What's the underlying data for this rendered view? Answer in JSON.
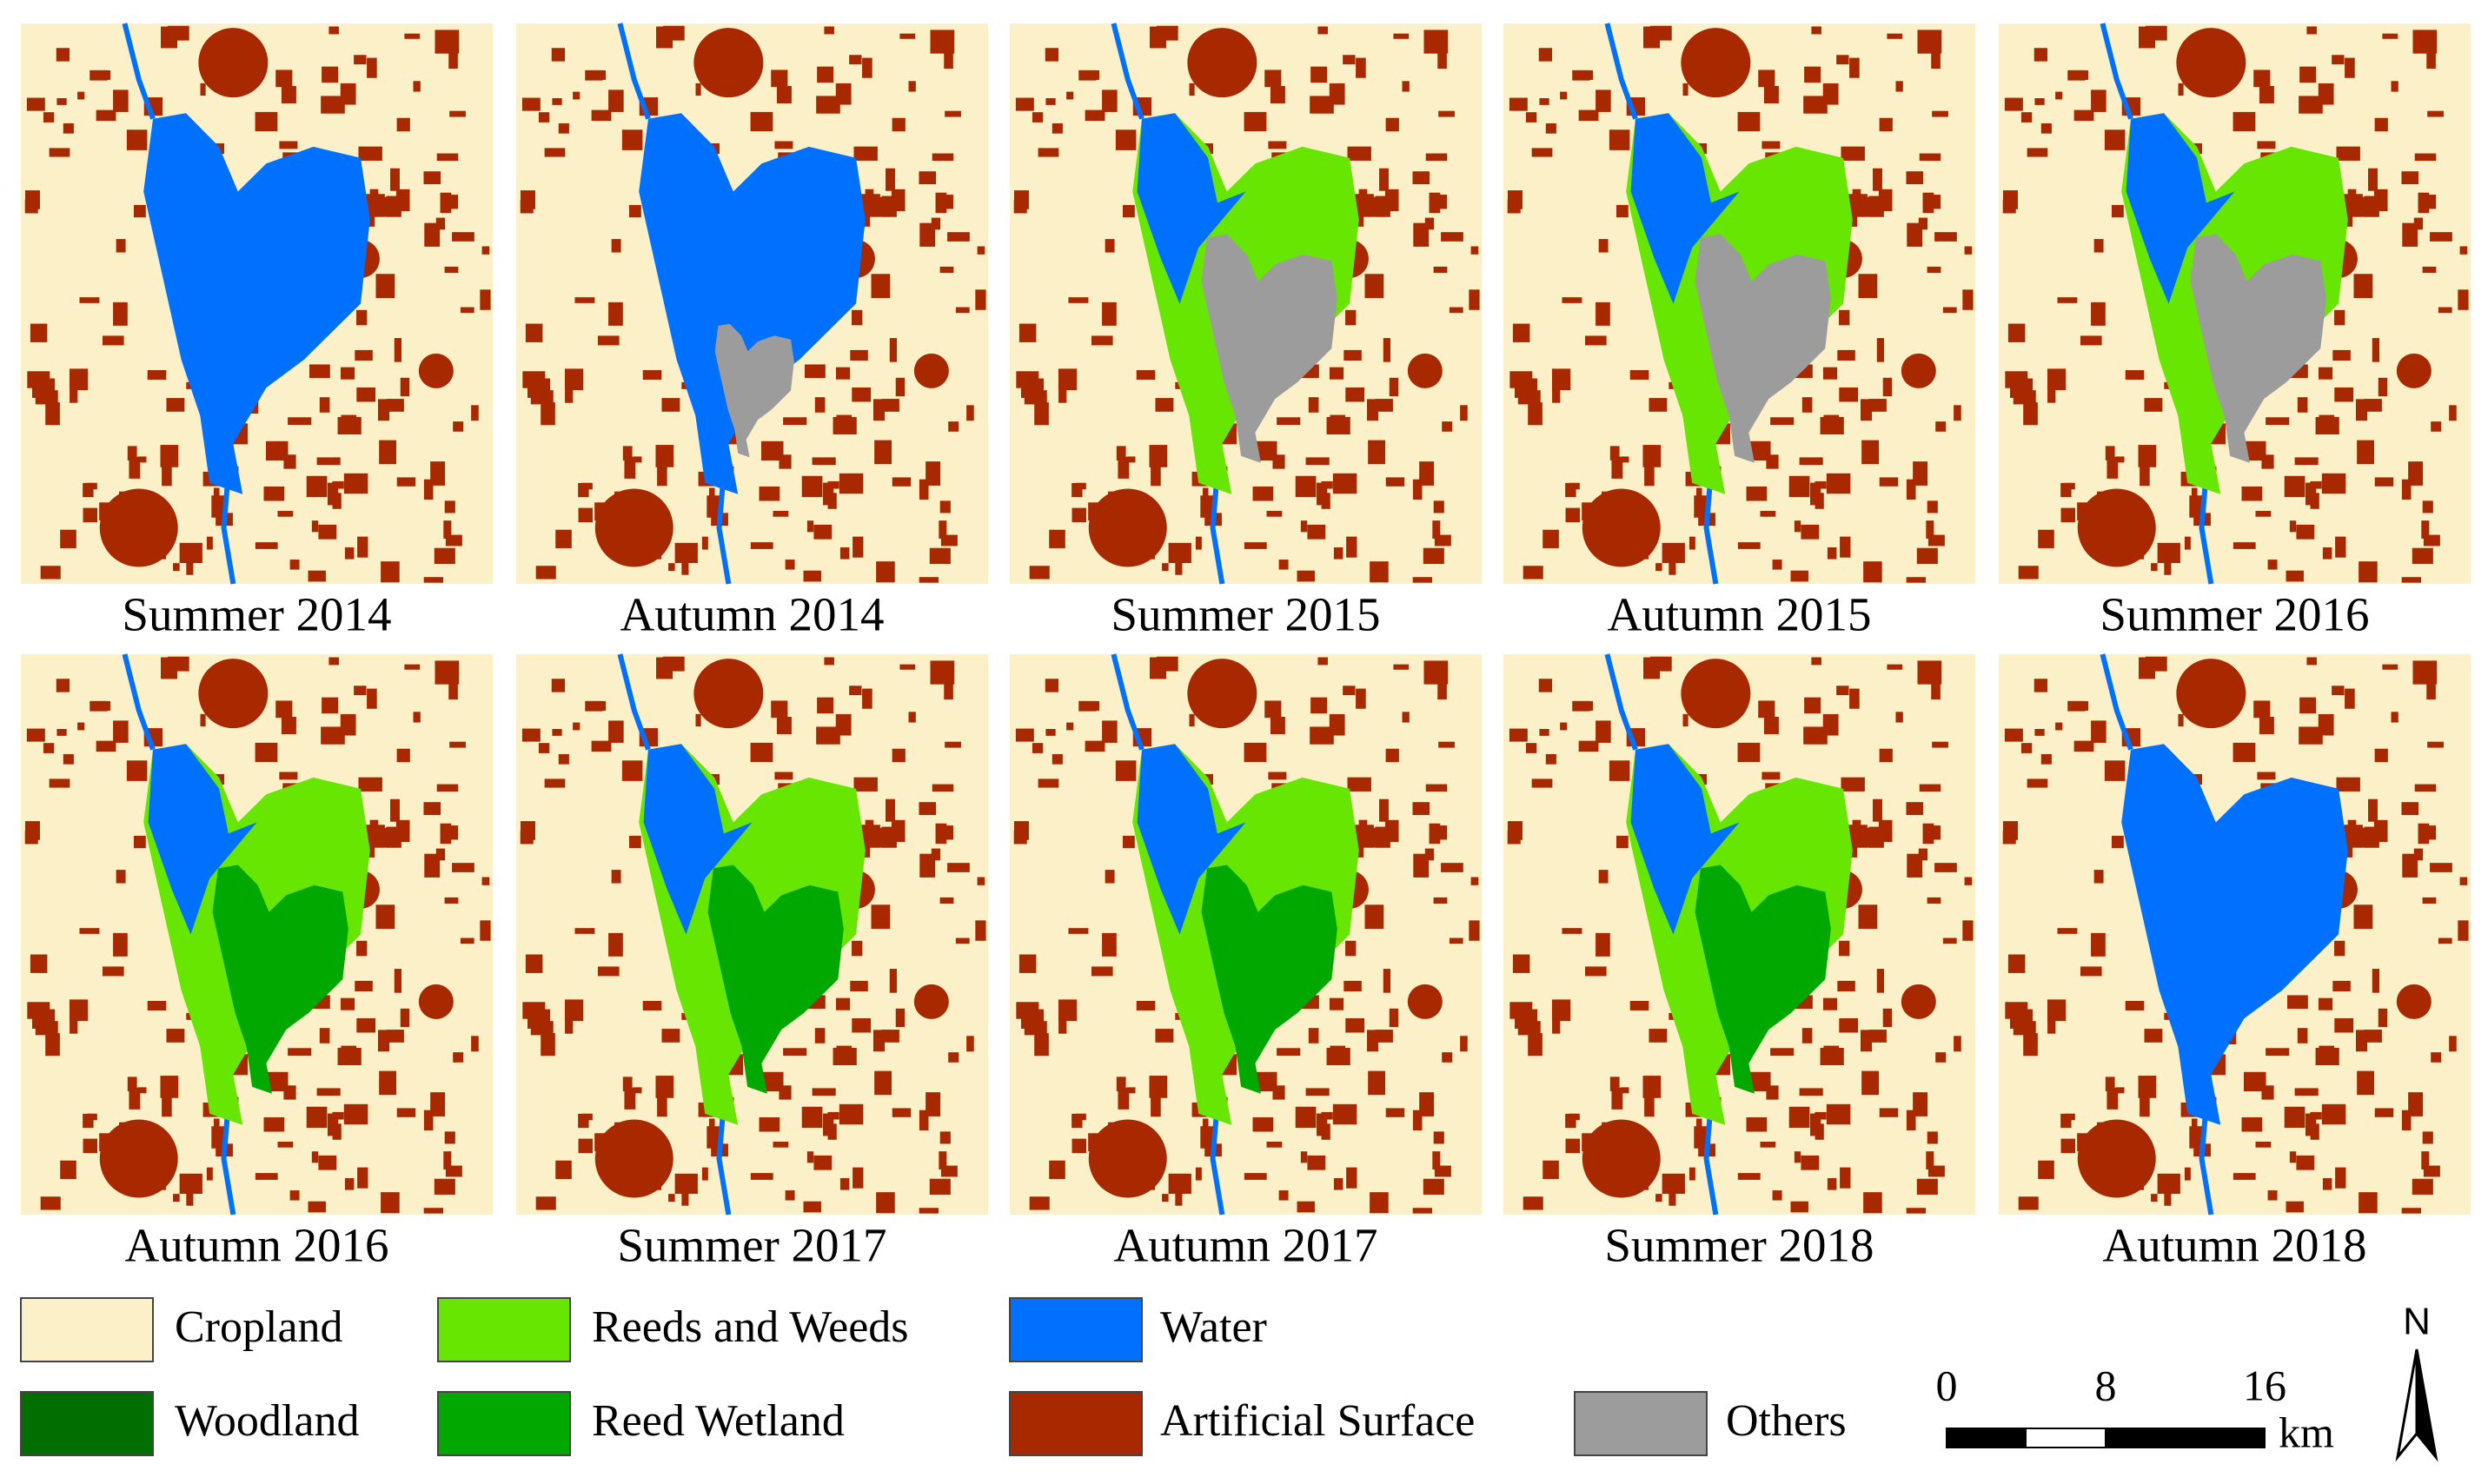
{
  "panels": [
    {
      "label": "Summer 2014"
    },
    {
      "label": "Autumn 2014"
    },
    {
      "label": "Summer 2015"
    },
    {
      "label": "Autumn 2015"
    },
    {
      "label": "Summer 2016"
    },
    {
      "label": "Autumn 2016"
    },
    {
      "label": "Summer 2017"
    },
    {
      "label": "Autumn 2017"
    },
    {
      "label": "Summer 2018"
    },
    {
      "label": "Autumn 2018"
    }
  ],
  "legend": [
    {
      "label": "Cropland",
      "color": "#fbf0c8"
    },
    {
      "label": "Reeds and Weeds",
      "color": "#66e600"
    },
    {
      "label": "Water",
      "color": "#0070ff"
    },
    {
      "label": "Woodland",
      "color": "#006e00"
    },
    {
      "label": "Reed Wetland",
      "color": "#00a800"
    },
    {
      "label": "Artificial Surface",
      "color": "#a82800"
    },
    {
      "label": "Others",
      "color": "#9c9c9c"
    }
  ],
  "scale_bar": {
    "labels": [
      "0",
      "8",
      "16"
    ],
    "unit": "km"
  },
  "north": "N"
}
